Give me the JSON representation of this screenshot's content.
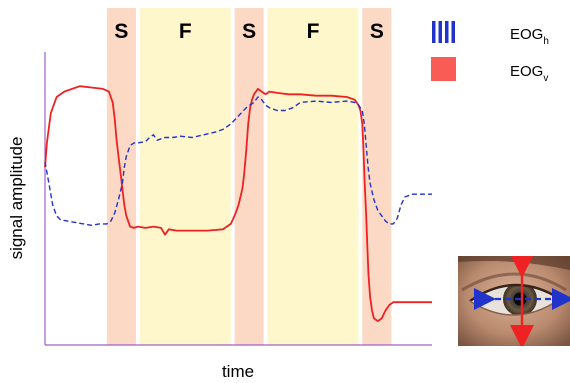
{
  "chart_data": {
    "type": "line",
    "xlabel": "time",
    "ylabel": "signal amplitude",
    "x_range": [
      0,
      100
    ],
    "y_range": [
      0,
      100
    ],
    "grid": false,
    "legend_placement": "top-right",
    "phases": [
      {
        "label": "S",
        "start": 16,
        "end": 23.5,
        "kind": "saccade"
      },
      {
        "label": "F",
        "start": 24.5,
        "end": 48,
        "kind": "fixation"
      },
      {
        "label": "S",
        "start": 49,
        "end": 56.5,
        "kind": "saccade"
      },
      {
        "label": "F",
        "start": 57.5,
        "end": 81,
        "kind": "fixation"
      },
      {
        "label": "S",
        "start": 82,
        "end": 89.5,
        "kind": "saccade"
      }
    ],
    "series": [
      {
        "name": "EOG_v",
        "display_name": "EOG",
        "subscript": "v",
        "style": "solid",
        "color": "#ee2222",
        "x": [
          0,
          0.5,
          1.5,
          3,
          5,
          7,
          9,
          12,
          15,
          16.5,
          17.5,
          18,
          18.5,
          19,
          19.5,
          20,
          20.5,
          21,
          21.5,
          22,
          23,
          24,
          26,
          28,
          30,
          31,
          32,
          34,
          38,
          42,
          46,
          48,
          49,
          50,
          51,
          51.5,
          52,
          52.5,
          53,
          53.5,
          54,
          55,
          56,
          57,
          58,
          60,
          63,
          66,
          70,
          74,
          78,
          80,
          81,
          81.5,
          82,
          82.3,
          82.6,
          83,
          83.3,
          83.6,
          84,
          84.5,
          85,
          86,
          87,
          88,
          89,
          90,
          92,
          95,
          100
        ],
        "y": [
          64,
          73,
          84,
          90,
          92,
          93,
          94,
          93.5,
          93,
          92,
          88,
          82,
          74,
          68,
          62,
          56,
          50,
          46,
          44,
          42,
          41.5,
          42,
          41.5,
          42,
          41.5,
          39,
          41,
          40.5,
          40.5,
          40.5,
          41,
          43,
          46,
          50,
          56,
          62,
          70,
          80,
          86,
          89,
          91,
          93,
          92,
          91,
          92,
          91.5,
          91,
          91,
          90.5,
          90.5,
          90,
          89,
          87,
          85,
          80,
          70,
          58,
          46,
          34,
          24,
          16,
          11,
          8,
          7,
          8,
          11,
          13,
          14,
          14,
          14,
          14
        ]
      },
      {
        "name": "EOG_h",
        "display_name": "EOG",
        "subscript": "h",
        "style": "dashed",
        "color": "#2233cc",
        "x": [
          0,
          1,
          2,
          3,
          4,
          6,
          8,
          10,
          12,
          14,
          16,
          17,
          18,
          19,
          20,
          20.5,
          21,
          21.5,
          22,
          23,
          24,
          26,
          27,
          28,
          29,
          30,
          31,
          33,
          35,
          38,
          41,
          44,
          46,
          48,
          50,
          52,
          54,
          55,
          56,
          57,
          58,
          60,
          62,
          64,
          66,
          70,
          74,
          78,
          80,
          81,
          82,
          82.5,
          83,
          83.5,
          84,
          85,
          86,
          87,
          88,
          89,
          90,
          91,
          92,
          93,
          95,
          98,
          100
        ],
        "y": [
          66,
          58,
          50,
          46,
          44.5,
          44,
          43.5,
          43,
          42.5,
          43,
          43,
          44,
          47,
          52,
          58,
          64,
          68,
          70,
          72,
          73,
          73,
          73.5,
          75,
          76,
          74,
          74.5,
          75,
          75,
          75.5,
          75,
          76,
          77,
          78,
          80,
          83,
          86,
          88,
          90,
          89,
          87,
          86,
          85,
          85,
          86,
          88,
          88.5,
          88,
          88.5,
          88,
          87,
          85,
          80,
          72,
          64,
          58,
          52,
          48,
          46,
          44,
          43,
          43,
          45,
          50,
          53,
          54,
          54,
          54
        ]
      }
    ]
  },
  "figure": {
    "colors": {
      "saccade_band": "#fbd9c4",
      "fixation_band": "#fdf7cb",
      "axis": "#a060c8",
      "eye_arrow_vertical": "#ee2222",
      "eye_arrow_horizontal": "#2233cc"
    },
    "eye_photo": {
      "icon": "eye-photo"
    }
  }
}
